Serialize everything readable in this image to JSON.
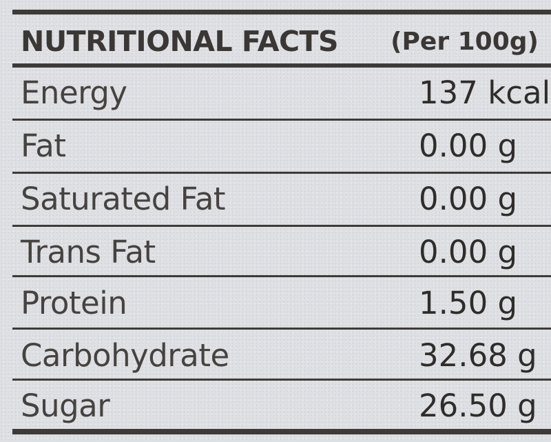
{
  "header": {
    "title": "NUTRITIONAL FACTS",
    "basis": "(Per 100g)"
  },
  "rows": [
    {
      "name": "Energy",
      "value": "137 kcal"
    },
    {
      "name": "Fat",
      "value": "0.00 g"
    },
    {
      "name": "Saturated Fat",
      "value": "0.00 g"
    },
    {
      "name": "Trans Fat",
      "value": "0.00 g"
    },
    {
      "name": "Protein",
      "value": "1.50 g"
    },
    {
      "name": "Carbohydrate",
      "value": "32.68 g"
    },
    {
      "name": "Sugar",
      "value": "26.50 g"
    }
  ]
}
